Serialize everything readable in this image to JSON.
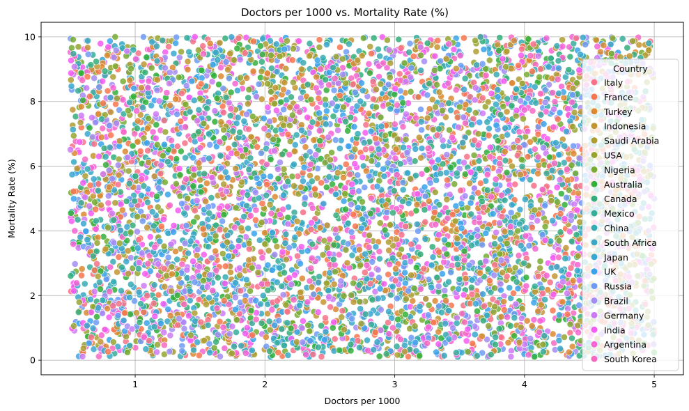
{
  "chart_data": {
    "type": "scatter",
    "title": "Doctors per 1000 vs. Mortality Rate (%)",
    "xlabel": "Doctors per 1000",
    "ylabel": "Mortality Rate (%)",
    "xlim": [
      0.275,
      5.225
    ],
    "ylim": [
      -0.45,
      10.45
    ],
    "xticks": [
      1,
      2,
      3,
      4,
      5
    ],
    "yticks": [
      0,
      2,
      4,
      6,
      8,
      10
    ],
    "grid": true,
    "point_domain": {
      "x": [
        0.5,
        5.0
      ],
      "y": [
        0.1,
        10.0
      ]
    },
    "legend": {
      "title": "Country",
      "placement": "right",
      "entries": [
        {
          "name": "Italy",
          "color": "#f77189"
        },
        {
          "name": "France",
          "color": "#f7754f"
        },
        {
          "name": "Turkey",
          "color": "#dc8932"
        },
        {
          "name": "Indonesia",
          "color": "#c39532"
        },
        {
          "name": "Saudi Arabia",
          "color": "#ae9d31"
        },
        {
          "name": "USA",
          "color": "#97a431"
        },
        {
          "name": "Nigeria",
          "color": "#77ab31"
        },
        {
          "name": "Australia",
          "color": "#33b039"
        },
        {
          "name": "Canada",
          "color": "#35ae7b"
        },
        {
          "name": "Mexico",
          "color": "#36ad99"
        },
        {
          "name": "China",
          "color": "#37abb4"
        },
        {
          "name": "South Africa",
          "color": "#38a8c5"
        },
        {
          "name": "Japan",
          "color": "#39a7d0"
        },
        {
          "name": "UK",
          "color": "#3ba3ec"
        },
        {
          "name": "Russia",
          "color": "#6e9af4"
        },
        {
          "name": "Brazil",
          "color": "#a38cf4"
        },
        {
          "name": "Germany",
          "color": "#cc7af4"
        },
        {
          "name": "India",
          "color": "#f45cf2"
        },
        {
          "name": "Argentina",
          "color": "#f563d4"
        },
        {
          "name": "South Korea",
          "color": "#f668c2"
        }
      ]
    }
  }
}
